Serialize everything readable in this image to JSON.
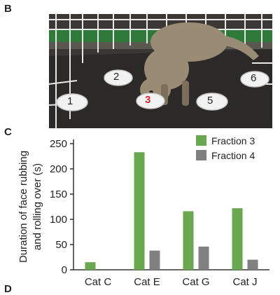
{
  "panel_labels": {
    "b": "B",
    "c": "C",
    "d": "D"
  },
  "photo": {
    "plate_numbers": [
      "2",
      "6",
      "1",
      "3",
      "5"
    ],
    "highlighted_plate": "3",
    "highlight_color": "#d9282f"
  },
  "chart_data": {
    "type": "bar",
    "categories": [
      "Cat C",
      "Cat E",
      "Cat G",
      "Cat J"
    ],
    "series": [
      {
        "name": "Fraction 3",
        "color": "#6aa84f",
        "values": [
          15,
          233,
          116,
          122
        ]
      },
      {
        "name": "Fraction 4",
        "color": "#808080",
        "values": [
          0,
          38,
          46,
          20
        ]
      }
    ],
    "ylabel_lines": [
      "Duration of face rubbing",
      "and rolling over (s)"
    ],
    "xlabel": "",
    "ylim": [
      0,
      250
    ],
    "yticks": [
      0,
      50,
      100,
      150,
      200,
      250
    ],
    "grid": false,
    "legend_position": "top-right"
  }
}
